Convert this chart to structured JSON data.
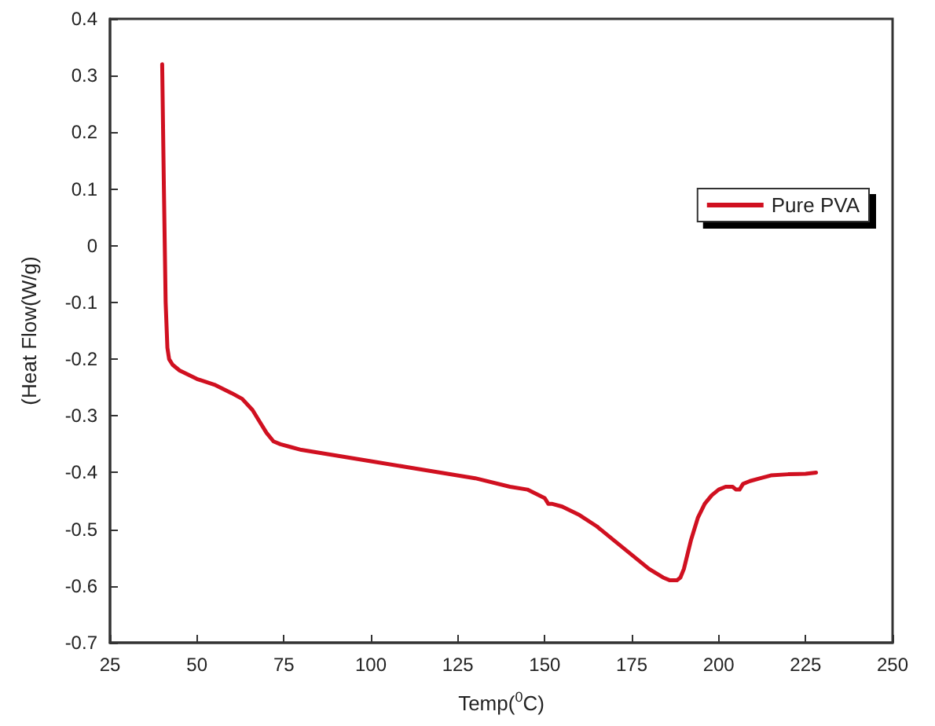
{
  "chart_data": {
    "type": "line",
    "xlabel": "Temp($^{0}$C)",
    "ylabel": "(Heat Flow(W/g)",
    "xlim": [
      25,
      250
    ],
    "xticks": [
      25,
      50,
      75,
      100,
      125,
      150,
      175,
      200,
      225,
      250
    ],
    "ylim": [
      -0.7,
      0.4
    ],
    "yticks": [
      -0.7,
      -0.6,
      -0.5,
      -0.4,
      -0.3,
      -0.2,
      -0.1,
      0.0,
      0.1,
      0.2,
      0.3,
      0.4
    ],
    "legend": "top right",
    "marker": "none",
    "line_style": "solid",
    "grid": false,
    "series": [
      {
        "name": "Pure PVA",
        "color": "#d01020",
        "x": [
          40,
          40.5,
          41,
          41.5,
          42,
          43,
          45,
          50,
          55,
          60,
          63,
          66,
          68,
          70,
          72,
          74,
          77,
          80,
          90,
          100,
          110,
          120,
          130,
          140,
          145,
          150,
          151,
          152,
          155,
          160,
          165,
          170,
          175,
          180,
          184,
          186,
          188,
          189,
          190,
          191,
          192,
          194,
          196,
          198,
          200,
          202,
          204,
          205,
          206,
          207,
          209,
          212,
          215,
          220,
          225,
          228
        ],
        "values": [
          0.32,
          0.1,
          -0.1,
          -0.18,
          -0.2,
          -0.21,
          -0.22,
          -0.235,
          -0.245,
          -0.26,
          -0.27,
          -0.29,
          -0.31,
          -0.33,
          -0.345,
          -0.35,
          -0.355,
          -0.36,
          -0.37,
          -0.38,
          -0.39,
          -0.4,
          -0.41,
          -0.425,
          -0.43,
          -0.445,
          -0.455,
          -0.455,
          -0.46,
          -0.475,
          -0.495,
          -0.52,
          -0.545,
          -0.57,
          -0.585,
          -0.59,
          -0.59,
          -0.585,
          -0.57,
          -0.545,
          -0.52,
          -0.48,
          -0.455,
          -0.44,
          -0.43,
          -0.425,
          -0.425,
          -0.43,
          -0.43,
          -0.42,
          -0.415,
          -0.41,
          -0.405,
          -0.403,
          -0.402,
          -0.4
        ]
      }
    ]
  }
}
